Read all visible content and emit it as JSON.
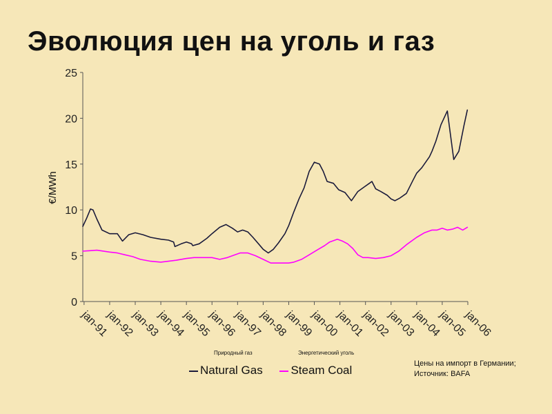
{
  "title": "Эволюция цен на уголь и газ",
  "source_lines": [
    "Цены на импорт в Германии;",
    "Источник: BAFA"
  ],
  "captions": {
    "gas_ru": "Природный газ",
    "coal_ru": "Энергетический уголь"
  },
  "colors": {
    "background": "#f6e7b8",
    "gas": "#1a1a3a",
    "coal": "#ff00ff",
    "axis": "#555555"
  },
  "chart_data": {
    "type": "line",
    "ylabel": "€/MWh",
    "ylim": [
      0,
      25
    ],
    "yticks": [
      "0",
      "5",
      "10",
      "15",
      "20",
      "25"
    ],
    "xlim": [
      1990.95,
      2006.0
    ],
    "xticks": [
      "jan-91",
      "jan-92",
      "jan-93",
      "jan-94",
      "jan-95",
      "jan-96",
      "jan-97",
      "jan-98",
      "jan-99",
      "jan-00",
      "jan-01",
      "jan-02",
      "jan-03",
      "jan-04",
      "jan-05",
      "jan-06"
    ],
    "grid": false,
    "legend": "bottom",
    "series": [
      {
        "name": "Natural Gas",
        "x": [
          1990.95,
          1991.1,
          1991.25,
          1991.35,
          1991.5,
          1991.7,
          1992.0,
          1992.3,
          1992.5,
          1992.75,
          1993.0,
          1993.3,
          1993.6,
          1994.0,
          1994.3,
          1994.5,
          1994.55,
          1994.8,
          1995.0,
          1995.2,
          1995.25,
          1995.5,
          1995.8,
          1996.0,
          1996.3,
          1996.55,
          1996.8,
          1997.0,
          1997.2,
          1997.4,
          1997.6,
          1997.85,
          1998.0,
          1998.2,
          1998.4,
          1998.6,
          1998.85,
          1999.0,
          1999.2,
          1999.4,
          1999.6,
          1999.8,
          2000.0,
          2000.2,
          2000.35,
          2000.5,
          2000.75,
          2000.95,
          2001.2,
          2001.45,
          2001.7,
          2001.95,
          2002.15,
          2002.25,
          2002.4,
          2002.6,
          2002.85,
          2003.0,
          2003.15,
          2003.35,
          2003.6,
          2003.85,
          2004.0,
          2004.2,
          2004.5,
          2004.6,
          2004.75,
          2004.95,
          2005.2,
          2005.45,
          2005.65,
          2005.85,
          2005.98
        ],
        "values": [
          8.2,
          9.1,
          10.1,
          10.0,
          9.0,
          7.8,
          7.4,
          7.4,
          6.6,
          7.3,
          7.5,
          7.3,
          7.0,
          6.8,
          6.7,
          6.5,
          6.0,
          6.3,
          6.5,
          6.3,
          6.1,
          6.3,
          6.9,
          7.4,
          8.1,
          8.4,
          8.0,
          7.6,
          7.8,
          7.6,
          7.0,
          6.2,
          5.7,
          5.3,
          5.7,
          6.4,
          7.4,
          8.3,
          9.8,
          11.2,
          12.4,
          14.2,
          15.2,
          15.0,
          14.2,
          13.1,
          12.9,
          12.2,
          11.9,
          11.0,
          12.0,
          12.5,
          12.9,
          13.1,
          12.3,
          12.0,
          11.6,
          11.2,
          11.0,
          11.3,
          11.8,
          13.2,
          14.0,
          14.6,
          15.8,
          16.4,
          17.5,
          19.3,
          20.8,
          15.5,
          16.4,
          19.2,
          20.9
        ]
      },
      {
        "name": "Steam Coal",
        "x": [
          1990.95,
          1991.5,
          1992.0,
          1992.3,
          1992.6,
          1992.9,
          1993.2,
          1993.6,
          1994.0,
          1994.3,
          1994.6,
          1995.0,
          1995.3,
          1995.55,
          1995.8,
          1996.0,
          1996.3,
          1996.6,
          1996.9,
          1997.1,
          1997.4,
          1997.7,
          1998.0,
          1998.3,
          1998.6,
          1999.0,
          1999.2,
          1999.5,
          1999.8,
          2000.1,
          2000.4,
          2000.6,
          2000.9,
          2001.1,
          2001.3,
          2001.5,
          2001.7,
          2001.9,
          2002.1,
          2002.4,
          2002.7,
          2003.0,
          2003.3,
          2003.6,
          2004.0,
          2004.3,
          2004.6,
          2004.8,
          2005.0,
          2005.2,
          2005.4,
          2005.6,
          2005.8,
          2005.98
        ],
        "values": [
          5.5,
          5.6,
          5.4,
          5.3,
          5.1,
          4.9,
          4.6,
          4.4,
          4.3,
          4.4,
          4.5,
          4.7,
          4.8,
          4.8,
          4.8,
          4.8,
          4.6,
          4.8,
          5.1,
          5.3,
          5.3,
          5.0,
          4.6,
          4.2,
          4.2,
          4.2,
          4.3,
          4.6,
          5.1,
          5.6,
          6.1,
          6.5,
          6.8,
          6.6,
          6.3,
          5.8,
          5.1,
          4.8,
          4.8,
          4.7,
          4.8,
          5.0,
          5.5,
          6.2,
          7.0,
          7.5,
          7.8,
          7.8,
          8.0,
          7.8,
          7.9,
          8.1,
          7.8,
          8.1
        ]
      }
    ],
    "legend_entries": [
      "Natural Gas",
      "Steam Coal"
    ]
  }
}
